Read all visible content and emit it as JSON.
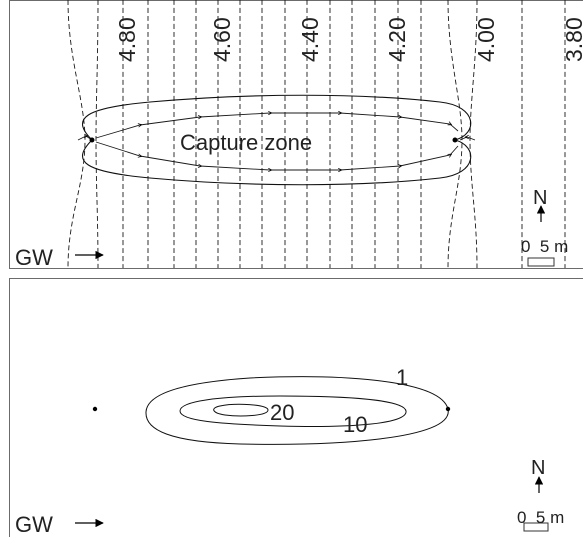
{
  "top_panel": {
    "head_labels": [
      "4.80",
      "4.60",
      "4.40",
      "4.20",
      "4.00",
      "3.80"
    ],
    "capture_zone_label": "Capture zone",
    "north_label": "N",
    "scale_label": "0  5 m",
    "gw_label": "GW"
  },
  "bottom_panel": {
    "contour_labels": [
      "1",
      "10",
      "20"
    ],
    "north_label": "N",
    "scale_label": "0  5 m",
    "gw_label": "GW"
  }
}
